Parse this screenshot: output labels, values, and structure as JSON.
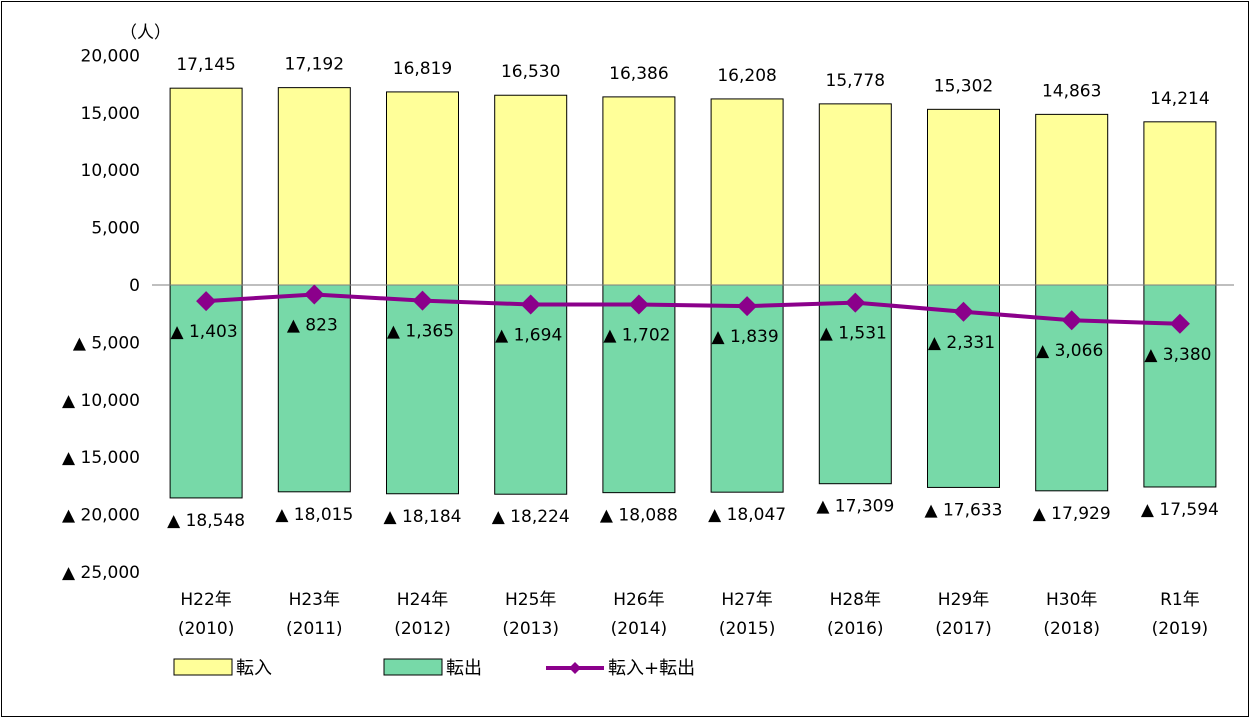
{
  "chart_data": {
    "type": "bar",
    "unit_label": "（人）",
    "x_tick_labels": [
      [
        "H22年",
        "(2010)"
      ],
      [
        "H23年",
        "(2011)"
      ],
      [
        "H24年",
        "(2012)"
      ],
      [
        "H25年",
        "(2013)"
      ],
      [
        "H26年",
        "(2014)"
      ],
      [
        "H27年",
        "(2015)"
      ],
      [
        "H28年",
        "(2016)"
      ],
      [
        "H29年",
        "(2017)"
      ],
      [
        "H30年",
        "(2018)"
      ],
      [
        "R1年",
        "(2019)"
      ]
    ],
    "y_tick_labels": [
      "20,000",
      "15,000",
      "10,000",
      "5,000",
      "0",
      "▲ 5,000",
      "▲ 10,000",
      "▲ 15,000",
      "▲ 20,000",
      "▲ 25,000"
    ],
    "y_ticks": [
      20000,
      15000,
      10000,
      5000,
      0,
      -5000,
      -10000,
      -15000,
      -20000,
      -25000
    ],
    "ylim": [
      -25000,
      20000
    ],
    "grid": false,
    "legend_position": "bottom",
    "series": [
      {
        "name": "転入",
        "kind": "bar",
        "color": "#FFFF99",
        "values": [
          17145,
          17192,
          16819,
          16530,
          16386,
          16208,
          15778,
          15302,
          14863,
          14214
        ],
        "labels": [
          "17,145",
          "17,192",
          "16,819",
          "16,530",
          "16,386",
          "16,208",
          "15,778",
          "15,302",
          "14,863",
          "14,214"
        ]
      },
      {
        "name": "転出",
        "kind": "bar",
        "color": "#77D9A8",
        "values": [
          -18548,
          -18015,
          -18184,
          -18224,
          -18088,
          -18047,
          -17309,
          -17633,
          -17929,
          -17594
        ],
        "labels": [
          "▲ 18,548",
          "▲ 18,015",
          "▲ 18,184",
          "▲ 18,224",
          "▲ 18,088",
          "▲ 18,047",
          "▲ 17,309",
          "▲ 17,633",
          "▲ 17,929",
          "▲ 17,594"
        ]
      },
      {
        "name": "転入+転出",
        "kind": "line",
        "color": "#8B008B",
        "values": [
          -1403,
          -823,
          -1365,
          -1694,
          -1702,
          -1839,
          -1531,
          -2331,
          -3066,
          -3380
        ],
        "labels": [
          "▲ 1,403",
          "▲ 823",
          "▲ 1,365",
          "▲ 1,694",
          "▲ 1,702",
          "▲ 1,839",
          "▲ 1,531",
          "▲ 2,331",
          "▲ 3,066",
          "▲ 3,380"
        ]
      }
    ]
  }
}
